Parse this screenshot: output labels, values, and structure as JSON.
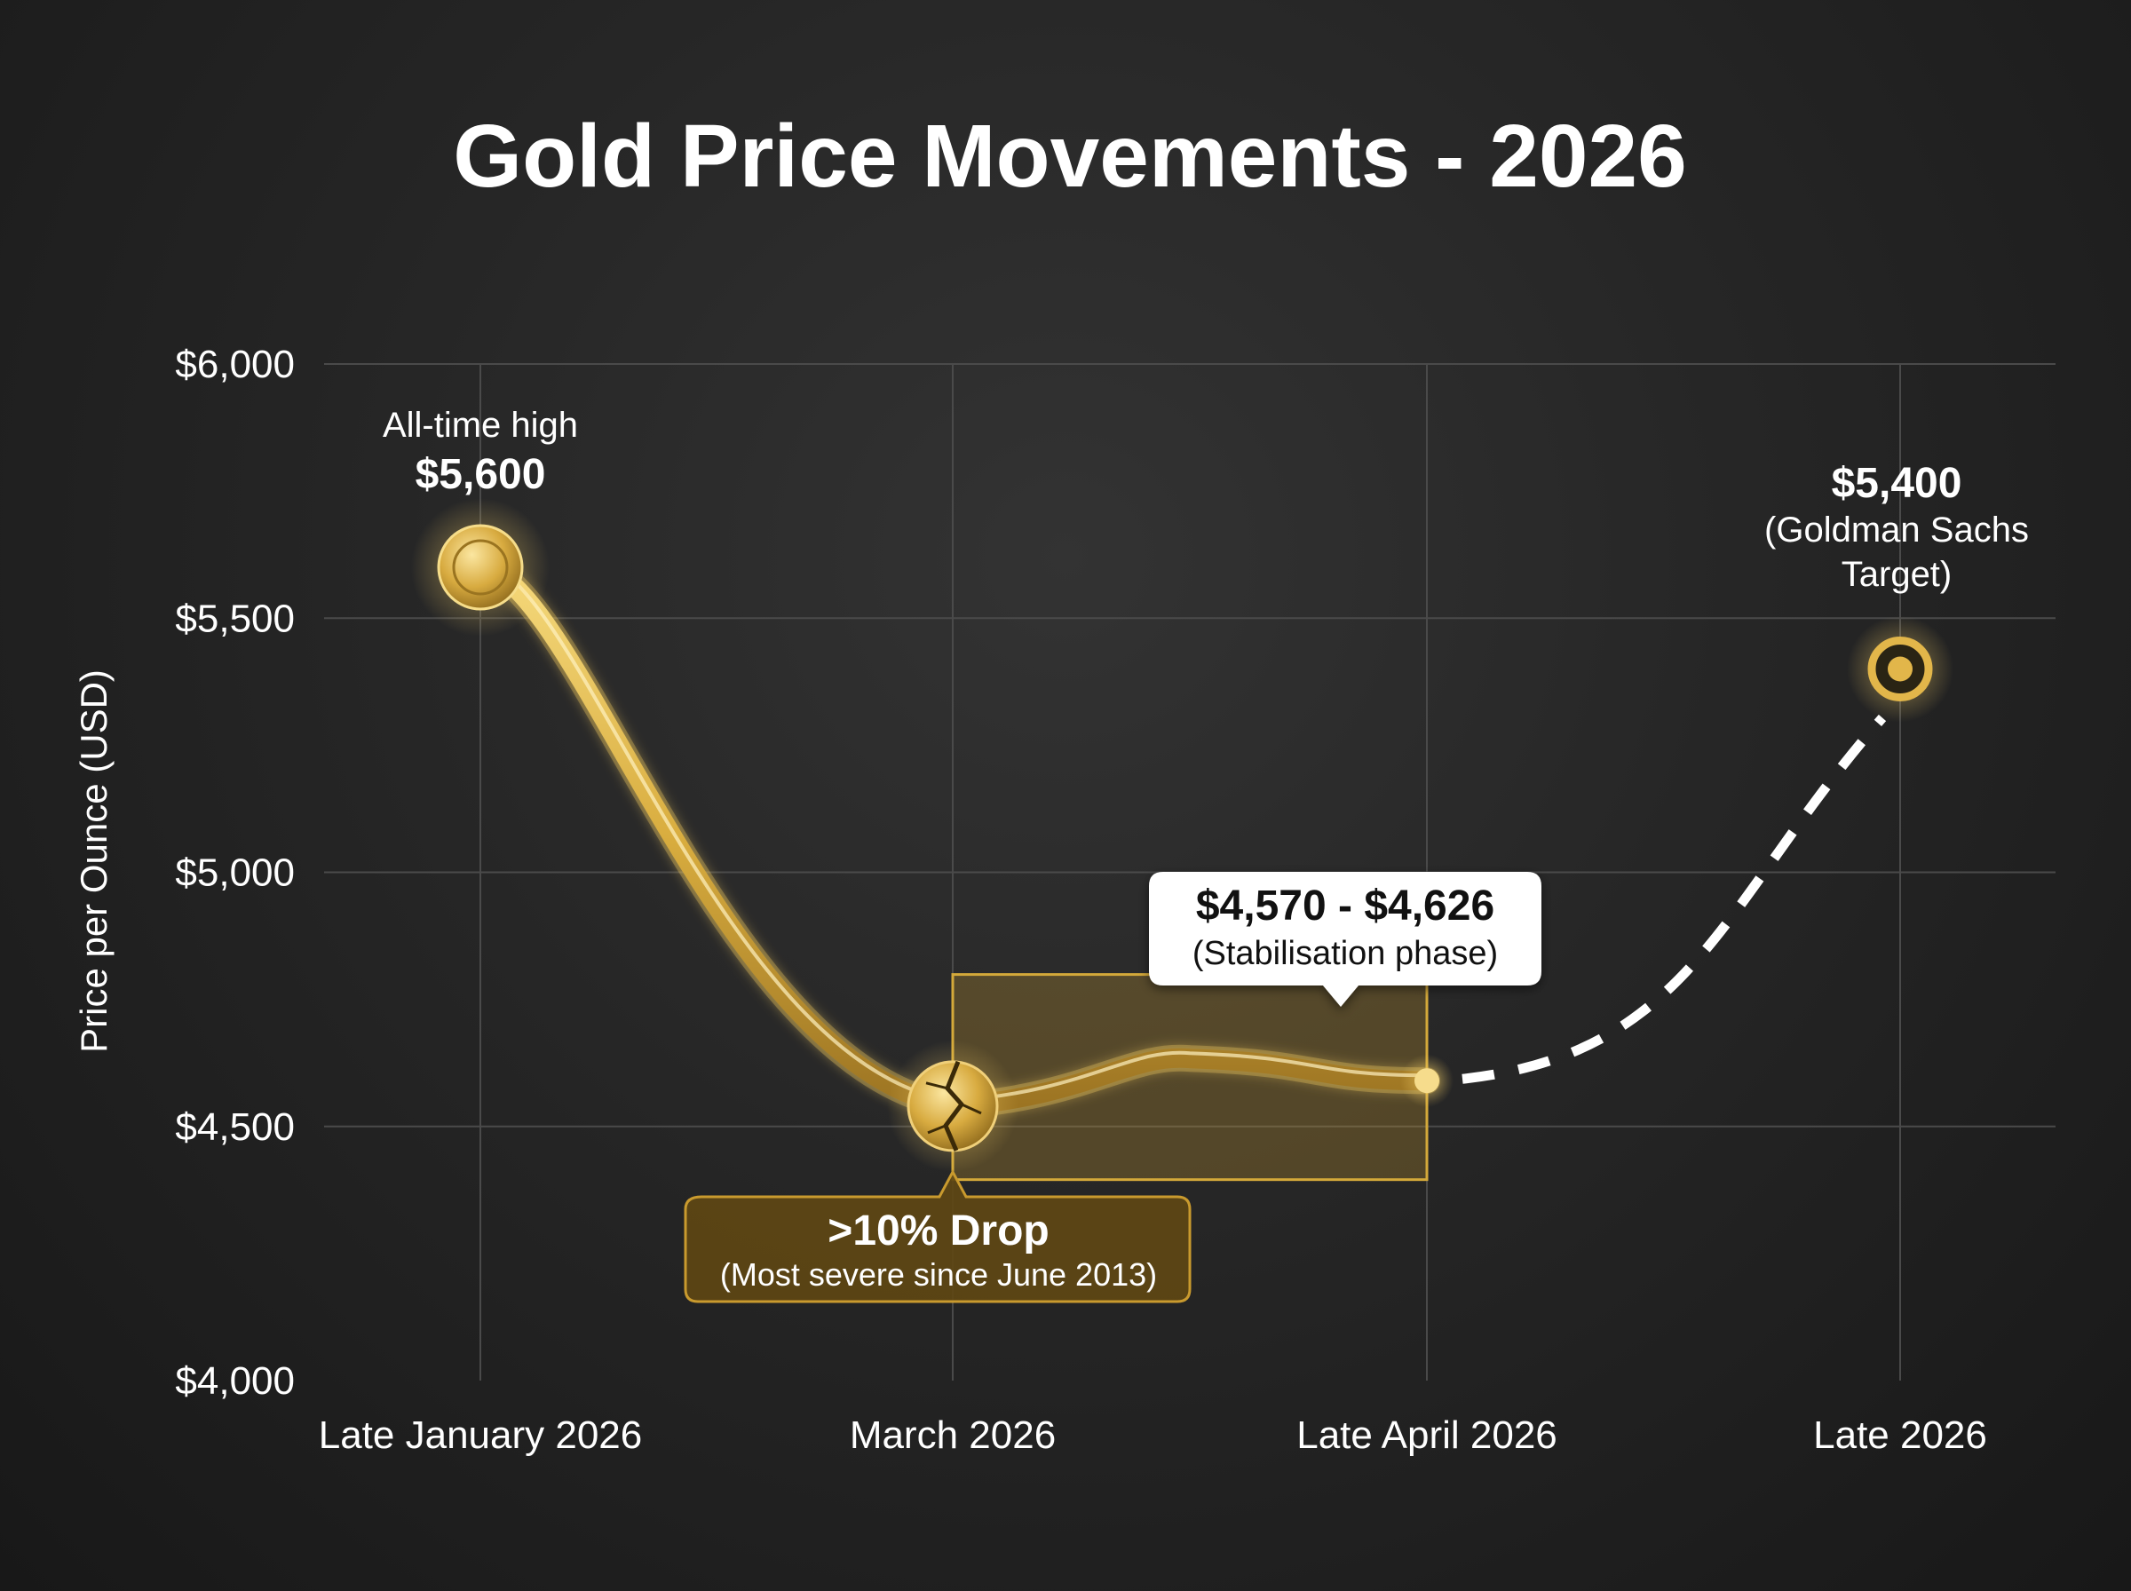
{
  "chart_data": {
    "type": "line",
    "title": "Gold Price Movements - 2026",
    "ylabel": "Price per Ounce (USD)",
    "xlabel": "",
    "ylim": [
      4000,
      6000
    ],
    "yticks": [
      4000,
      4500,
      5000,
      5500,
      6000
    ],
    "ytick_labels": [
      "$4,000",
      "$4,500",
      "$5,000",
      "$5,500",
      "$6,000"
    ],
    "categories": [
      "Late January 2026",
      "March 2026",
      "Late April 2026",
      "Late 2026"
    ],
    "grid": true,
    "series": [
      {
        "style": "solid",
        "points": [
          {
            "x": "Late January 2026",
            "y": 5600
          },
          {
            "x": "March 2026",
            "y": 4540
          },
          {
            "x": "Late April 2026",
            "y": 4590
          }
        ]
      },
      {
        "style": "dashed",
        "points": [
          {
            "x": "Late April 2026",
            "y": 4590
          },
          {
            "x": "Late 2026",
            "y": 5400
          }
        ]
      }
    ],
    "band": {
      "x_from": "March 2026",
      "x_to": "Late April 2026",
      "y_from": 4570,
      "y_to": 4626
    },
    "annotations": {
      "high": {
        "title": "All-time high",
        "value": "$5,600"
      },
      "drop": {
        "title": ">10% Drop",
        "note": "(Most severe since June 2013)"
      },
      "range": {
        "title": "$4,570 - $4,626",
        "note": "(Stabilisation phase)"
      },
      "target": {
        "value": "$5,400",
        "note_line1": "(Goldman Sachs",
        "note_line2": "Target)"
      }
    },
    "colors": {
      "gold": "#d4a93a",
      "gold_light": "#f3d57a",
      "gold_dark": "#9a7420",
      "axis": "#ffffff",
      "grid": "#4a4a4a"
    }
  }
}
